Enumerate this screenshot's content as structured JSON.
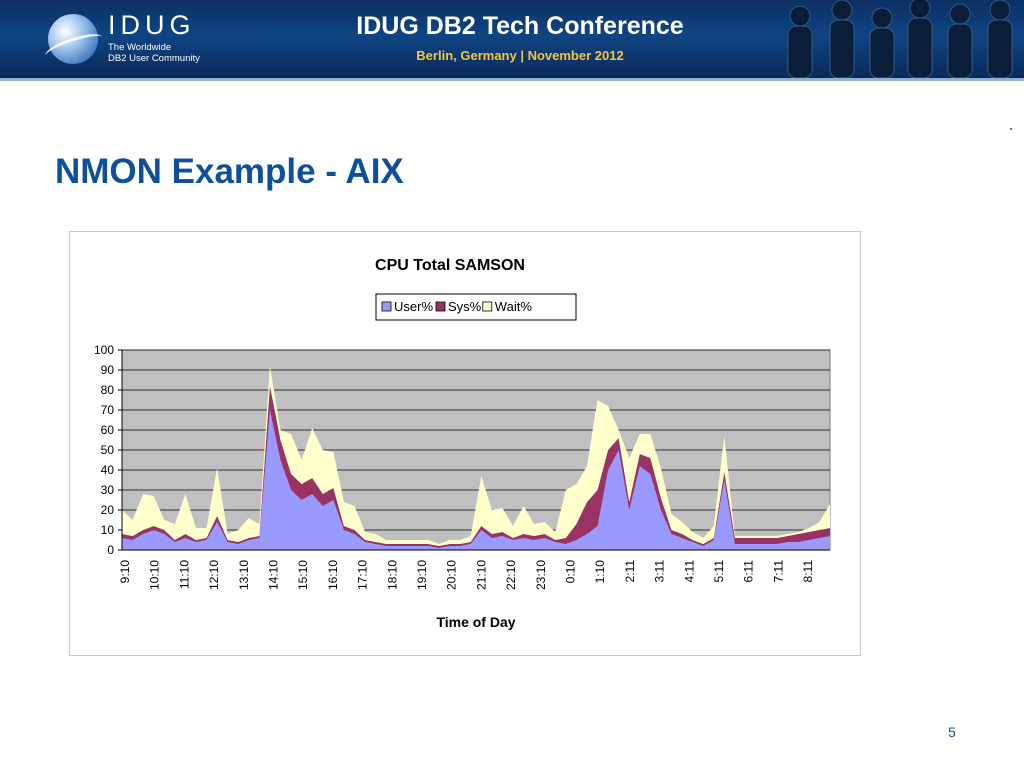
{
  "header": {
    "logo_name": "IDUG",
    "logo_tagline_1": "The Worldwide",
    "logo_tagline_2": "DB2 User Community",
    "title": "IDUG DB2 Tech Conference",
    "subtitle": "Berlin, Germany | November 2012"
  },
  "slide": {
    "title": "NMON Example - AIX",
    "page_number": "5"
  },
  "chart_data": {
    "type": "area",
    "stacked": true,
    "title": "CPU Total SAMSON",
    "xlabel": "Time of Day",
    "ylabel": "",
    "ylim": [
      0,
      100
    ],
    "yticks": [
      0,
      10,
      20,
      30,
      40,
      50,
      60,
      70,
      80,
      90,
      100
    ],
    "grid": true,
    "legend_position": "top-center",
    "plot_background": "#c0c0c0",
    "x_tick_labels": [
      "9:10",
      "10:10",
      "11:10",
      "12:10",
      "13:10",
      "14:10",
      "15:10",
      "16:10",
      "17:10",
      "18:10",
      "19:10",
      "20:10",
      "21:10",
      "22:10",
      "23:10",
      "0:10",
      "1:10",
      "2:11",
      "3:11",
      "4:11",
      "5:11",
      "6:11",
      "7:11",
      "8:11"
    ],
    "series": [
      {
        "name": "User%",
        "color": "#9999ff",
        "values": [
          6,
          5,
          8,
          10,
          8,
          4,
          6,
          4,
          5,
          14,
          4,
          3,
          5,
          6,
          70,
          45,
          30,
          25,
          28,
          22,
          25,
          10,
          8,
          4,
          3,
          2,
          2,
          2,
          2,
          2,
          1,
          2,
          2,
          3,
          10,
          6,
          7,
          5,
          6,
          5,
          6,
          4,
          3,
          5,
          8,
          12,
          40,
          50,
          20,
          42,
          38,
          20,
          8,
          6,
          4,
          2,
          5,
          35,
          3,
          3,
          3,
          3,
          3,
          4,
          4,
          5,
          6,
          7
        ]
      },
      {
        "name": "Sys%",
        "color": "#993366",
        "values": [
          2,
          2,
          2,
          2,
          2,
          1,
          2,
          1,
          1,
          3,
          1,
          1,
          1,
          1,
          12,
          10,
          8,
          8,
          8,
          6,
          6,
          2,
          2,
          1,
          1,
          1,
          1,
          1,
          1,
          1,
          1,
          1,
          1,
          1,
          2,
          2,
          2,
          1,
          2,
          2,
          2,
          1,
          3,
          8,
          16,
          18,
          10,
          6,
          4,
          6,
          8,
          6,
          2,
          2,
          1,
          1,
          1,
          4,
          3,
          3,
          3,
          3,
          3,
          3,
          4,
          4,
          4,
          4
        ]
      },
      {
        "name": "Wait%",
        "color": "#ffffcc",
        "values": [
          12,
          8,
          18,
          15,
          5,
          8,
          20,
          6,
          5,
          24,
          3,
          6,
          10,
          6,
          10,
          5,
          20,
          12,
          25,
          22,
          18,
          12,
          12,
          4,
          4,
          2,
          2,
          2,
          2,
          2,
          1,
          2,
          2,
          3,
          25,
          12,
          12,
          6,
          14,
          6,
          6,
          4,
          24,
          20,
          18,
          45,
          22,
          4,
          22,
          10,
          12,
          15,
          8,
          6,
          4,
          3,
          6,
          18,
          1,
          1,
          1,
          1,
          1,
          1,
          1,
          2,
          4,
          12
        ]
      }
    ]
  }
}
